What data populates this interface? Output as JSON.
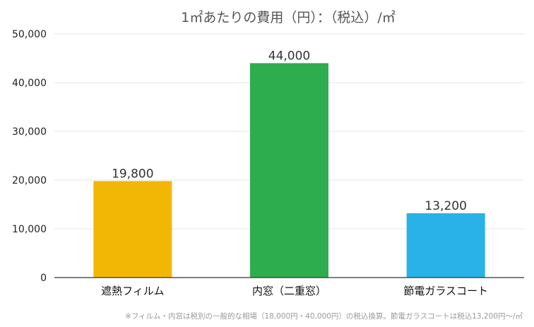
{
  "chart_data": {
    "type": "bar",
    "title": "1㎡あたりの費用（円）：（税込）/㎡",
    "categories": [
      "遮熱フィルム",
      "内窓（二重窓）",
      "節電ガラスコート"
    ],
    "values": [
      19800,
      44000,
      13200
    ],
    "value_labels": [
      "19,800",
      "44,000",
      "13,200"
    ],
    "colors": [
      "#F2B705",
      "#2EAD4F",
      "#29B2E8"
    ],
    "ylim": [
      0,
      50000
    ],
    "yticks": [
      0,
      10000,
      20000,
      30000,
      40000,
      50000
    ],
    "ytick_labels": [
      "0",
      "10,000",
      "20,000",
      "30,000",
      "40,000",
      "50,000"
    ],
    "grid": true,
    "xlabel": "",
    "ylabel": ""
  },
  "footnote": "※フィルム・内窓は税別の一般的な相場（18,000円・40,000円）の税込換算。節電ガラスコートは税込13,200円〜/㎡"
}
